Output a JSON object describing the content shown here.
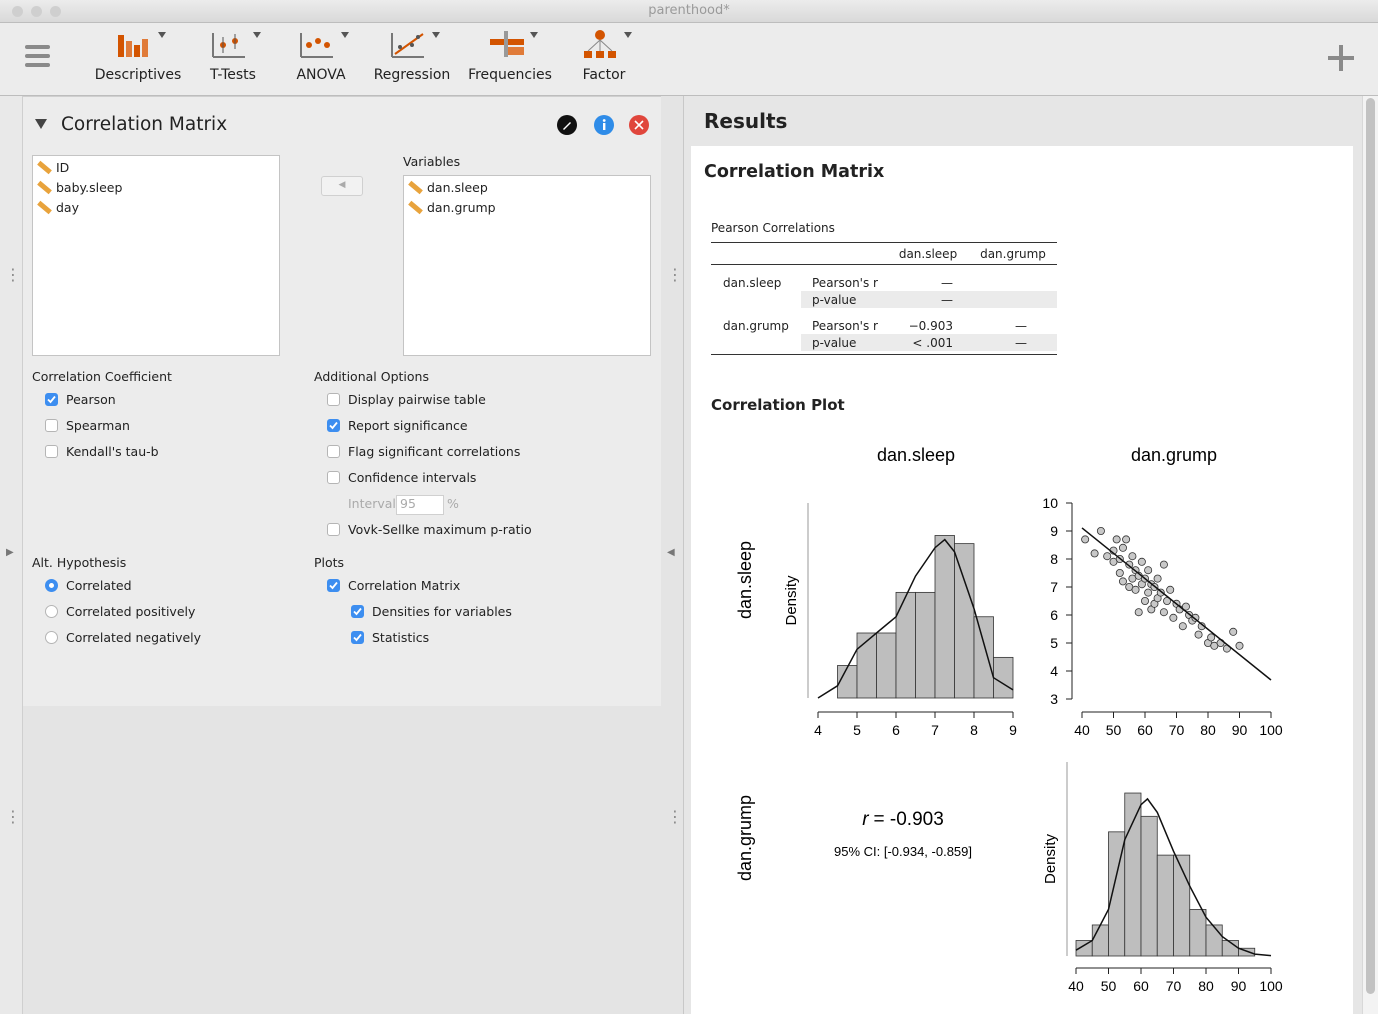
{
  "window": {
    "title": "parenthood*"
  },
  "toolbar": {
    "items": [
      "Descriptives",
      "T-Tests",
      "ANOVA",
      "Regression",
      "Frequencies",
      "Factor"
    ]
  },
  "panel": {
    "title": "Correlation Matrix",
    "available": [
      "ID",
      "baby.sleep",
      "day"
    ],
    "variables_label": "Variables",
    "variables": [
      "dan.sleep",
      "dan.grump"
    ]
  },
  "options": {
    "coefficient": {
      "title": "Correlation Coefficient",
      "items": [
        {
          "label": "Pearson",
          "checked": true
        },
        {
          "label": "Spearman",
          "checked": false
        },
        {
          "label": "Kendall's tau-b",
          "checked": false
        }
      ]
    },
    "additional": {
      "title": "Additional Options",
      "items": [
        {
          "label": "Display pairwise table",
          "checked": false
        },
        {
          "label": "Report significance",
          "checked": true
        },
        {
          "label": "Flag significant correlations",
          "checked": false
        },
        {
          "label": "Confidence intervals",
          "checked": false
        },
        {
          "label": "Vovk-Sellke maximum p-ratio",
          "checked": false
        }
      ],
      "interval": {
        "label": "Interval",
        "value": 95,
        "unit": "%"
      }
    },
    "hypothesis": {
      "title": "Alt. Hypothesis",
      "items": [
        {
          "label": "Correlated",
          "selected": true
        },
        {
          "label": "Correlated positively",
          "selected": false
        },
        {
          "label": "Correlated negatively",
          "selected": false
        }
      ]
    },
    "plots": {
      "title": "Plots",
      "items": [
        {
          "label": "Correlation Matrix",
          "checked": true
        },
        {
          "label": "Densities for variables",
          "checked": true
        },
        {
          "label": "Statistics",
          "checked": true
        }
      ]
    }
  },
  "results": {
    "title": "Results",
    "section": "Correlation Matrix",
    "table": {
      "title": "Pearson Correlations",
      "columns": [
        "dan.sleep",
        "dan.grump"
      ],
      "rows": [
        {
          "variable": "dan.sleep",
          "stats": [
            {
              "name": "Pearson's r",
              "cells": [
                "—"
              ]
            },
            {
              "name": "p-value",
              "cells": [
                "—"
              ]
            }
          ]
        },
        {
          "variable": "dan.grump",
          "stats": [
            {
              "name": "Pearson's r",
              "cells": [
                "−0.903",
                "—"
              ]
            },
            {
              "name": "p-value",
              "cells": [
                "< .001",
                "—"
              ]
            }
          ]
        }
      ]
    },
    "plot": {
      "title": "Correlation Plot",
      "columns": [
        "dan.sleep",
        "dan.grump"
      ],
      "rows": [
        "dan.sleep",
        "dan.grump"
      ],
      "r_symbol": "r",
      "r_value": "= -0.903",
      "ci": "95% CI: [-0.934, -0.859]"
    }
  },
  "chart_data": [
    {
      "type": "histogram",
      "ylabel": "Density",
      "color": "#bebebe",
      "bins": [
        4.5,
        5,
        5.5,
        6,
        6.5,
        7,
        7.5,
        8,
        8.5,
        9
      ],
      "values": [
        0.08,
        0.16,
        0.16,
        0.26,
        0.26,
        0.4,
        0.38,
        0.2,
        0.1
      ],
      "density": {
        "x": [
          4.0,
          4.5,
          5.0,
          5.5,
          6.0,
          6.5,
          7.0,
          7.25,
          7.5,
          8.0,
          8.5,
          9.0
        ],
        "y": [
          0.0,
          0.03,
          0.12,
          0.16,
          0.2,
          0.3,
          0.37,
          0.39,
          0.36,
          0.22,
          0.05,
          0.02
        ]
      },
      "xlim": [
        4,
        9
      ],
      "xticks": [
        4,
        5,
        6,
        7,
        8,
        9
      ],
      "ylim": [
        0,
        0.48
      ]
    },
    {
      "type": "scatter",
      "color": "#c8c8c8",
      "x": [
        41,
        44,
        46,
        48,
        50,
        50,
        51,
        52,
        52,
        53,
        53,
        54,
        55,
        55,
        56,
        56,
        57,
        57,
        58,
        58,
        59,
        59,
        60,
        60,
        61,
        61,
        62,
        62,
        63,
        63,
        64,
        64,
        65,
        66,
        66,
        67,
        68,
        69,
        70,
        71,
        72,
        73,
        74,
        75,
        76,
        77,
        78,
        80,
        81,
        82,
        84,
        86,
        88,
        90
      ],
      "y": [
        8.7,
        8.2,
        9.0,
        8.1,
        8.3,
        7.9,
        8.7,
        8.0,
        7.5,
        8.4,
        7.2,
        8.7,
        7.8,
        7.0,
        8.1,
        7.3,
        6.9,
        7.6,
        7.4,
        6.1,
        7.1,
        7.9,
        6.5,
        7.3,
        7.6,
        6.8,
        6.2,
        7.1,
        6.4,
        7.0,
        6.6,
        7.3,
        6.8,
        6.1,
        7.8,
        6.5,
        6.9,
        5.9,
        6.4,
        6.2,
        5.6,
        6.3,
        6.0,
        5.8,
        5.9,
        5.3,
        5.6,
        5.0,
        5.2,
        4.9,
        5.0,
        4.8,
        5.4,
        4.9
      ],
      "fit": {
        "x": [
          40,
          100
        ],
        "y": [
          9.11,
          3.68
        ]
      },
      "xlim": [
        40,
        100
      ],
      "xticks": [
        40,
        50,
        60,
        70,
        80,
        90,
        100
      ],
      "ylim": [
        3,
        10
      ],
      "yticks": [
        3,
        4,
        5,
        6,
        7,
        8,
        9,
        10
      ]
    },
    {
      "type": "histogram",
      "ylabel": "Density",
      "color": "#bebebe",
      "bins": [
        40,
        45,
        50,
        55,
        60,
        65,
        70,
        75,
        80,
        85,
        90,
        95
      ],
      "values": [
        0.004,
        0.008,
        0.032,
        0.042,
        0.036,
        0.026,
        0.026,
        0.012,
        0.008,
        0.004,
        0.002
      ],
      "density": {
        "x": [
          40,
          45,
          50,
          55,
          60,
          62,
          65,
          70,
          75,
          80,
          85,
          90,
          95,
          100
        ],
        "y": [
          0.0015,
          0.004,
          0.012,
          0.03,
          0.039,
          0.0405,
          0.037,
          0.027,
          0.018,
          0.01,
          0.005,
          0.002,
          0.0005,
          0.0001
        ]
      },
      "xlim": [
        40,
        100
      ],
      "xticks": [
        40,
        50,
        60,
        70,
        80,
        90,
        100
      ],
      "ylim": [
        0,
        0.05
      ]
    }
  ]
}
